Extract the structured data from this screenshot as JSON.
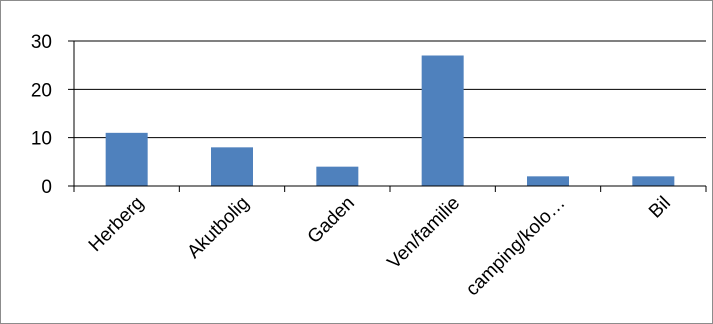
{
  "chart_data": {
    "type": "bar",
    "categories": [
      "Herberg",
      "Akutbolig",
      "Gaden",
      "Ven/familie",
      "camping/kolo…",
      "Bil"
    ],
    "values": [
      11,
      8,
      4,
      27,
      2,
      2
    ],
    "yticks": [
      "0",
      "10",
      "20",
      "30"
    ],
    "ylim": [
      0,
      30
    ],
    "grid": true,
    "legend": false,
    "bar_color": "#4f81bd",
    "grid_color": "#000000"
  }
}
